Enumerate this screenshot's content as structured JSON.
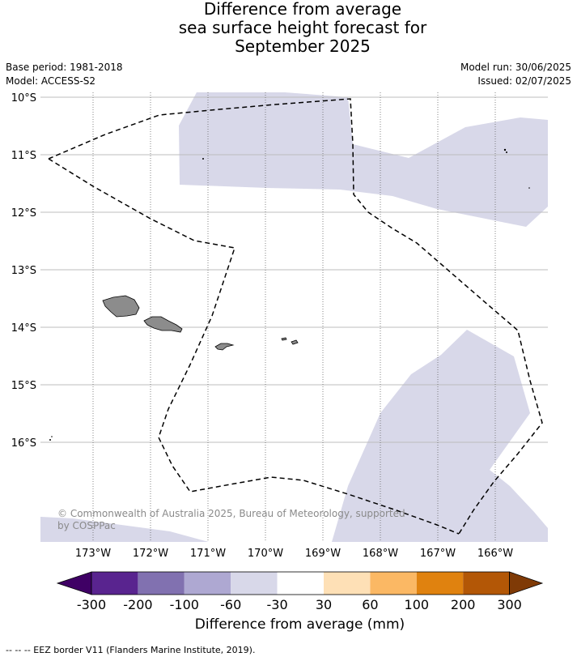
{
  "title": {
    "line1": "Difference from average",
    "line2": "sea surface height forecast for",
    "line3": "September 2025"
  },
  "meta": {
    "base_period": "Base period: 1981-2018",
    "model": "Model: ACCESS-S2",
    "model_run": "Model run: 30/06/2025",
    "issued": "Issued: 02/07/2025"
  },
  "map": {
    "lat_labels": [
      "10°S",
      "11°S",
      "12°S",
      "13°S",
      "14°S",
      "15°S",
      "16°S"
    ],
    "lon_labels": [
      "173°W",
      "172°W",
      "171°W",
      "170°W",
      "169°W",
      "168°W",
      "167°W",
      "166°W"
    ],
    "copyright_line1": "© Commonwealth of Australia 2025, Bureau of Meteorology, supported",
    "copyright_line2": "by COSPPac",
    "ocean_color": "#ffffff",
    "anomaly_fill_color": "#d8d8e9",
    "land_color": "#8c8c8c",
    "eez_line_color": "#000000"
  },
  "colorbar": {
    "tick_labels": [
      "-300",
      "-200",
      "-100",
      "-60",
      "-30",
      "30",
      "60",
      "100",
      "200",
      "300"
    ],
    "colors": [
      "#3f0065",
      "#59248f",
      "#8171b0",
      "#aea8d2",
      "#d8d8e9",
      "#ffffff",
      "#fee0b6",
      "#fbb864",
      "#e0820f",
      "#b35706",
      "#7f3a06"
    ],
    "label": "Difference from average (mm)"
  },
  "footer": {
    "legend_text": "--  --  -- EEZ border V11 (Flanders Marine Institute, 2019)."
  }
}
